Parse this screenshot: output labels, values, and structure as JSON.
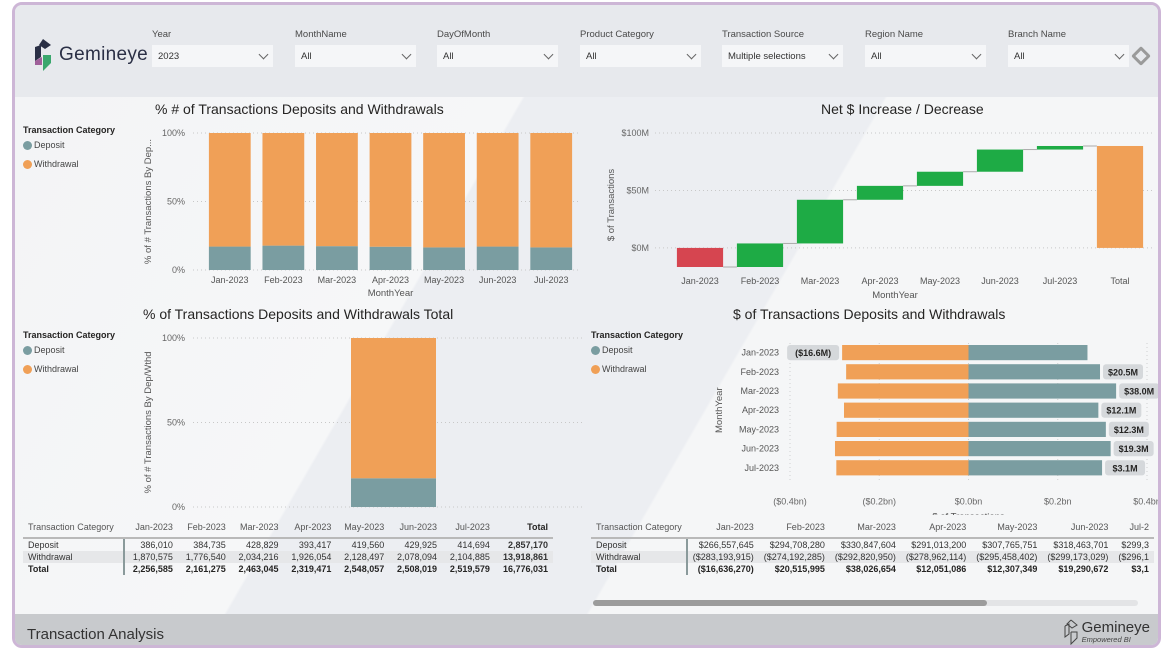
{
  "header": {
    "brand": "Gemineye",
    "slicers": [
      {
        "label": "Year",
        "value": "2023"
      },
      {
        "label": "MonthName",
        "value": "All"
      },
      {
        "label": "DayOfMonth",
        "value": "All"
      },
      {
        "label": "Product Category",
        "value": "All"
      },
      {
        "label": "Transaction Source",
        "value": "Multiple selections"
      },
      {
        "label": "Region Name",
        "value": "All"
      },
      {
        "label": "Branch Name",
        "value": "All"
      }
    ],
    "clear_filters_icon": "eraser-icon"
  },
  "colors": {
    "deposit": "#7a9da1",
    "withdrawal": "#f0a057",
    "increase": "#1eab45",
    "decrease": "#d64550",
    "total": "#f0a057"
  },
  "legend": {
    "title": "Transaction Category",
    "items": [
      "Deposit",
      "Withdrawal"
    ]
  },
  "chart_data": [
    {
      "id": "pct_by_month",
      "type": "bar",
      "stacked": "100%",
      "title": "% # of Transactions Deposits and Withdrawals",
      "xlabel": "MonthYear",
      "ylabel": "% of # Transactions By Dep...",
      "ylim": [
        0,
        100
      ],
      "yticks": [
        "0%",
        "50%",
        "100%"
      ],
      "categories": [
        "Jan-2023",
        "Feb-2023",
        "Mar-2023",
        "Apr-2023",
        "May-2023",
        "Jun-2023",
        "Jul-2023"
      ],
      "series": [
        {
          "name": "Deposit",
          "values": [
            17.1,
            17.8,
            17.4,
            17.0,
            16.5,
            17.1,
            16.5
          ]
        },
        {
          "name": "Withdrawal",
          "values": [
            82.9,
            82.2,
            82.6,
            83.0,
            83.5,
            82.9,
            83.5
          ]
        }
      ],
      "grid": true,
      "legend_position": "left"
    },
    {
      "id": "waterfall",
      "type": "bar",
      "subtype": "waterfall",
      "title": "Net $ Increase / Decrease",
      "xlabel": "MonthYear",
      "ylabel": "$ of Transactions",
      "ylim": [
        -16.6,
        100
      ],
      "yticks": [
        "$0M",
        "$50M",
        "$100M"
      ],
      "ytick_values": [
        0,
        50,
        100
      ],
      "categories": [
        "Jan-2023",
        "Feb-2023",
        "Mar-2023",
        "Apr-2023",
        "May-2023",
        "Jun-2023",
        "Jul-2023",
        "Total"
      ],
      "values": [
        -16.6,
        20.5,
        38.0,
        12.1,
        12.3,
        19.3,
        3.1,
        88.7
      ],
      "units": "$M",
      "grid": true
    },
    {
      "id": "pct_total",
      "type": "bar",
      "stacked": "100%",
      "title": "% of Transactions Deposits and Withdrawals Total",
      "ylabel": "% of # Transactions By Dep/Wthd",
      "ylim": [
        0,
        100
      ],
      "yticks": [
        "0%",
        "50%",
        "100%"
      ],
      "categories": [
        "Total"
      ],
      "series": [
        {
          "name": "Deposit",
          "values": [
            17.0
          ]
        },
        {
          "name": "Withdrawal",
          "values": [
            83.0
          ]
        }
      ],
      "grid": true,
      "legend_position": "left"
    },
    {
      "id": "dollar_by_month",
      "type": "bar",
      "orientation": "horizontal",
      "title": "$ of Transactions Deposits and Withdrawals",
      "xlabel": "$ of Transactions",
      "ylabel": "MonthYear",
      "xlim": [
        -0.4,
        0.4
      ],
      "xticks": [
        "($0.4bn)",
        "($0.2bn)",
        "$0.0bn",
        "$0.2bn",
        "$0.4bn"
      ],
      "xtick_values": [
        -0.4,
        -0.2,
        0,
        0.2,
        0.4
      ],
      "units": "$bn",
      "categories": [
        "Jan-2023",
        "Feb-2023",
        "Mar-2023",
        "Apr-2023",
        "May-2023",
        "Jun-2023",
        "Jul-2023"
      ],
      "series": [
        {
          "name": "Deposit",
          "values": [
            0.2666,
            0.2947,
            0.3308,
            0.291,
            0.3078,
            0.3185,
            0.2993
          ]
        },
        {
          "name": "Withdrawal",
          "values": [
            -0.2832,
            -0.2742,
            -0.2928,
            -0.279,
            -0.2955,
            -0.2992,
            -0.2962
          ]
        }
      ],
      "data_labels": [
        "($16.6M)",
        "$20.5M",
        "$38.0M",
        "$12.1M",
        "$12.3M",
        "$19.3M",
        "$3.1M"
      ],
      "legend_position": "left"
    }
  ],
  "table_count": {
    "headers": [
      "Transaction Category",
      "Jan-2023",
      "Feb-2023",
      "Mar-2023",
      "Apr-2023",
      "May-2023",
      "Jun-2023",
      "Jul-2023",
      "Total"
    ],
    "rows": [
      [
        "Deposit",
        "386,010",
        "384,735",
        "428,829",
        "393,417",
        "419,560",
        "429,925",
        "414,694",
        "2,857,170"
      ],
      [
        "Withdrawal",
        "1,870,575",
        "1,776,540",
        "2,034,216",
        "1,926,054",
        "2,128,497",
        "2,078,094",
        "2,104,885",
        "13,918,861"
      ],
      [
        "Total",
        "2,256,585",
        "2,161,275",
        "2,463,045",
        "2,319,471",
        "2,548,057",
        "2,508,019",
        "2,519,579",
        "16,776,031"
      ]
    ]
  },
  "table_dollars": {
    "headers": [
      "Transaction Category",
      "Jan-2023",
      "Feb-2023",
      "Mar-2023",
      "Apr-2023",
      "May-2023",
      "Jun-2023",
      "Jul-2"
    ],
    "rows": [
      [
        "Deposit",
        "$266,557,645",
        "$294,708,280",
        "$330,847,604",
        "$291,013,200",
        "$307,765,751",
        "$318,463,701",
        "$299,3"
      ],
      [
        "Withdrawal",
        "($283,193,915)",
        "($274,192,285)",
        "($292,820,950)",
        "($278,962,114)",
        "($295,458,402)",
        "($299,173,029)",
        "($296,1"
      ],
      [
        "Total",
        "($16,636,270)",
        "$20,515,995",
        "$38,026,654",
        "$12,051,086",
        "$12,307,349",
        "$19,290,672",
        "$3,1"
      ]
    ]
  },
  "footer": {
    "title": "Transaction Analysis",
    "brand": "Gemineye",
    "tagline": "Empowered BI"
  }
}
